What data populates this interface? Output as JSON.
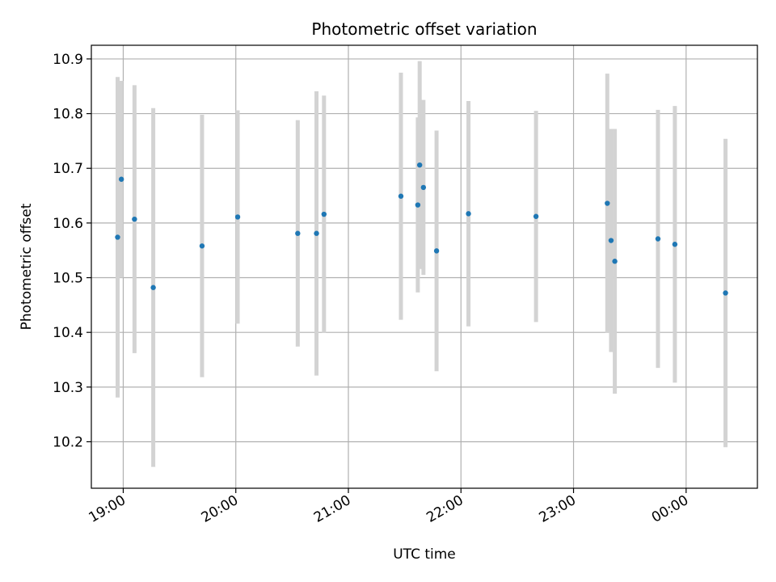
{
  "chart_data": {
    "type": "scatter",
    "title": "Photometric offset variation",
    "xlabel": "UTC time",
    "ylabel": "Photometric offset",
    "x_ticks": [
      "19:00",
      "20:00",
      "21:00",
      "22:00",
      "23:00",
      "00:00"
    ],
    "y_ticks": [
      "10.2",
      "10.3",
      "10.4",
      "10.5",
      "10.6",
      "10.7",
      "10.8",
      "10.9"
    ],
    "xlim": [
      "18:43",
      "00:38"
    ],
    "ylim": [
      10.115,
      10.925
    ],
    "grid": true,
    "colors": {
      "points": "#1f77b4",
      "errorbars": "#d3d3d3",
      "grid": "#b0b0b0"
    },
    "series": [
      {
        "points": [
          {
            "x": "18:57",
            "y": 10.574,
            "err": 0.293
          },
          {
            "x": "18:59",
            "y": 10.68,
            "err": 0.18
          },
          {
            "x": "19:06",
            "y": 10.607,
            "err": 0.245
          },
          {
            "x": "19:16",
            "y": 10.482,
            "err": 0.328
          },
          {
            "x": "19:42",
            "y": 10.558,
            "err": 0.24
          },
          {
            "x": "20:01",
            "y": 10.611,
            "err": 0.195
          },
          {
            "x": "20:33",
            "y": 10.581,
            "err": 0.207
          },
          {
            "x": "20:43",
            "y": 10.581,
            "err": 0.26
          },
          {
            "x": "20:47",
            "y": 10.616,
            "err": 0.217
          },
          {
            "x": "21:28",
            "y": 10.649,
            "err": 0.226
          },
          {
            "x": "21:37",
            "y": 10.633,
            "err": 0.16
          },
          {
            "x": "21:38",
            "y": 10.706,
            "err": 0.19
          },
          {
            "x": "21:40",
            "y": 10.665,
            "err": 0.16
          },
          {
            "x": "21:47",
            "y": 10.549,
            "err": 0.22
          },
          {
            "x": "22:04",
            "y": 10.617,
            "err": 0.206
          },
          {
            "x": "22:40",
            "y": 10.612,
            "err": 0.193
          },
          {
            "x": "23:18",
            "y": 10.636,
            "err": 0.237
          },
          {
            "x": "23:20",
            "y": 10.568,
            "err": 0.204
          },
          {
            "x": "23:22",
            "y": 10.53,
            "err": 0.242
          },
          {
            "x": "23:45",
            "y": 10.571,
            "err": 0.236
          },
          {
            "x": "23:54",
            "y": 10.561,
            "err": 0.253
          },
          {
            "x": "00:21",
            "y": 10.472,
            "err": 0.282
          }
        ]
      }
    ]
  }
}
